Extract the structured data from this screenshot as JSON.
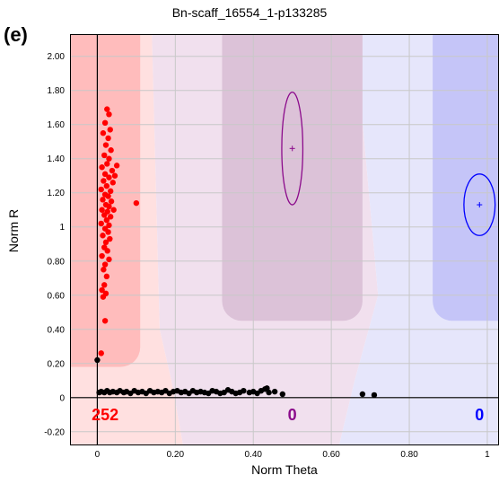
{
  "figure": {
    "panel_label": "(e)"
  },
  "chart_data": {
    "type": "scatter",
    "title": "Bn-scaff_16554_1-p133285",
    "xlabel": "Norm Theta",
    "ylabel": "Norm R",
    "xlim": [
      -0.07,
      1.03
    ],
    "ylim": [
      -0.28,
      2.13
    ],
    "grid": true,
    "x_ticks": [
      {
        "value": 0,
        "label": "0"
      },
      {
        "value": 0.2,
        "label": "0.20"
      },
      {
        "value": 0.4,
        "label": "0.40"
      },
      {
        "value": 0.6,
        "label": "0.60"
      },
      {
        "value": 0.8,
        "label": "0.80"
      },
      {
        "value": 1,
        "label": "1"
      }
    ],
    "y_ticks": [
      {
        "value": -0.2,
        "label": "-0.20"
      },
      {
        "value": 0,
        "label": "0"
      },
      {
        "value": 0.2,
        "label": "0.20"
      },
      {
        "value": 0.4,
        "label": "0.40"
      },
      {
        "value": 0.6,
        "label": "0.60"
      },
      {
        "value": 0.8,
        "label": "0.80"
      },
      {
        "value": 1,
        "label": "1"
      },
      {
        "value": 1.2,
        "label": "1.20"
      },
      {
        "value": 1.4,
        "label": "1.40"
      },
      {
        "value": 1.6,
        "label": "1.60"
      },
      {
        "value": 1.8,
        "label": "1.80"
      },
      {
        "value": 2,
        "label": "2.00"
      }
    ],
    "colors": {
      "red": "#ff0000",
      "purple": "#8b0a8b",
      "blue": "#0000ff",
      "black": "#000000",
      "region_red_outer": "#ffe0e0",
      "region_red_inner": "#ffbcbc",
      "region_purple_outer": "#f1e0ee",
      "region_purple_inner": "#dcc2d8",
      "region_blue_outer": "#e6e6fb",
      "region_blue_inner": "#c5c5f8"
    },
    "clusters": [
      {
        "color": "red",
        "count": "252",
        "center": [
          0.01,
          1.13
        ],
        "sd": [
          0,
          0
        ],
        "count_x": 0.02
      },
      {
        "color": "purple",
        "count": "0",
        "center": [
          0.5,
          1.46
        ],
        "sd": [
          0.027,
          0.33
        ],
        "count_x": 0.5
      },
      {
        "color": "blue",
        "count": "0",
        "center": [
          0.98,
          1.13
        ],
        "sd": [
          0.04,
          0.18
        ],
        "count_x": 0.98
      }
    ],
    "series": [
      {
        "color": "red",
        "points": [
          [
            0.025,
            1.69
          ],
          [
            0.03,
            1.66
          ],
          [
            0.02,
            1.61
          ],
          [
            0.033,
            1.57
          ],
          [
            0.015,
            1.55
          ],
          [
            0.028,
            1.52
          ],
          [
            0.022,
            1.48
          ],
          [
            0.035,
            1.45
          ],
          [
            0.018,
            1.42
          ],
          [
            0.03,
            1.4
          ],
          [
            0.025,
            1.37
          ],
          [
            0.012,
            1.35
          ],
          [
            0.038,
            1.33
          ],
          [
            0.02,
            1.31
          ],
          [
            0.03,
            1.29
          ],
          [
            0.016,
            1.27
          ],
          [
            0.04,
            1.26
          ],
          [
            0.024,
            1.24
          ],
          [
            0.01,
            1.22
          ],
          [
            0.034,
            1.21
          ],
          [
            0.02,
            1.19
          ],
          [
            0.028,
            1.18
          ],
          [
            0.014,
            1.16
          ],
          [
            0.036,
            1.15
          ],
          [
            0.022,
            1.13
          ],
          [
            0.03,
            1.12
          ],
          [
            0.012,
            1.1
          ],
          [
            0.026,
            1.09
          ],
          [
            0.018,
            1.07
          ],
          [
            0.034,
            1.06
          ],
          [
            0.024,
            1.04
          ],
          [
            0.01,
            1.02
          ],
          [
            0.03,
            1.01
          ],
          [
            0.02,
            0.99
          ],
          [
            0.028,
            0.97
          ],
          [
            0.014,
            0.95
          ],
          [
            0.032,
            0.93
          ],
          [
            0.022,
            0.91
          ],
          [
            0.018,
            0.88
          ],
          [
            0.026,
            0.86
          ],
          [
            0.012,
            0.83
          ],
          [
            0.03,
            0.81
          ],
          [
            0.02,
            0.78
          ],
          [
            0.016,
            0.75
          ],
          [
            0.024,
            0.71
          ],
          [
            0.018,
            0.66
          ],
          [
            0.012,
            0.63
          ],
          [
            0.022,
            0.61
          ],
          [
            0.015,
            0.59
          ],
          [
            0.02,
            0.45
          ],
          [
            0.01,
            0.26
          ],
          [
            0.1,
            1.14
          ],
          [
            0.045,
            1.3
          ],
          [
            0.05,
            1.36
          ],
          [
            0.042,
            1.1
          ]
        ]
      },
      {
        "color": "black",
        "points": [
          [
            0.0,
            0.22
          ],
          [
            0.005,
            0.03
          ],
          [
            0.01,
            0.035
          ],
          [
            0.018,
            0.03
          ],
          [
            0.025,
            0.04
          ],
          [
            0.032,
            0.03
          ],
          [
            0.04,
            0.035
          ],
          [
            0.05,
            0.03
          ],
          [
            0.058,
            0.04
          ],
          [
            0.068,
            0.03
          ],
          [
            0.075,
            0.035
          ],
          [
            0.085,
            0.025
          ],
          [
            0.095,
            0.04
          ],
          [
            0.105,
            0.03
          ],
          [
            0.115,
            0.035
          ],
          [
            0.125,
            0.025
          ],
          [
            0.135,
            0.04
          ],
          [
            0.145,
            0.03
          ],
          [
            0.155,
            0.035
          ],
          [
            0.165,
            0.03
          ],
          [
            0.175,
            0.04
          ],
          [
            0.185,
            0.025
          ],
          [
            0.195,
            0.035
          ],
          [
            0.205,
            0.04
          ],
          [
            0.215,
            0.03
          ],
          [
            0.225,
            0.035
          ],
          [
            0.235,
            0.025
          ],
          [
            0.245,
            0.04
          ],
          [
            0.255,
            0.03
          ],
          [
            0.265,
            0.035
          ],
          [
            0.275,
            0.03
          ],
          [
            0.285,
            0.025
          ],
          [
            0.295,
            0.04
          ],
          [
            0.305,
            0.035
          ],
          [
            0.315,
            0.025
          ],
          [
            0.325,
            0.03
          ],
          [
            0.335,
            0.045
          ],
          [
            0.345,
            0.035
          ],
          [
            0.355,
            0.025
          ],
          [
            0.365,
            0.03
          ],
          [
            0.375,
            0.04
          ],
          [
            0.39,
            0.03
          ],
          [
            0.4,
            0.035
          ],
          [
            0.41,
            0.025
          ],
          [
            0.42,
            0.04
          ],
          [
            0.43,
            0.05
          ],
          [
            0.435,
            0.055
          ],
          [
            0.44,
            0.03
          ],
          [
            0.455,
            0.035
          ],
          [
            0.475,
            0.02
          ],
          [
            0.68,
            0.02
          ],
          [
            0.71,
            0.015
          ]
        ]
      }
    ]
  }
}
